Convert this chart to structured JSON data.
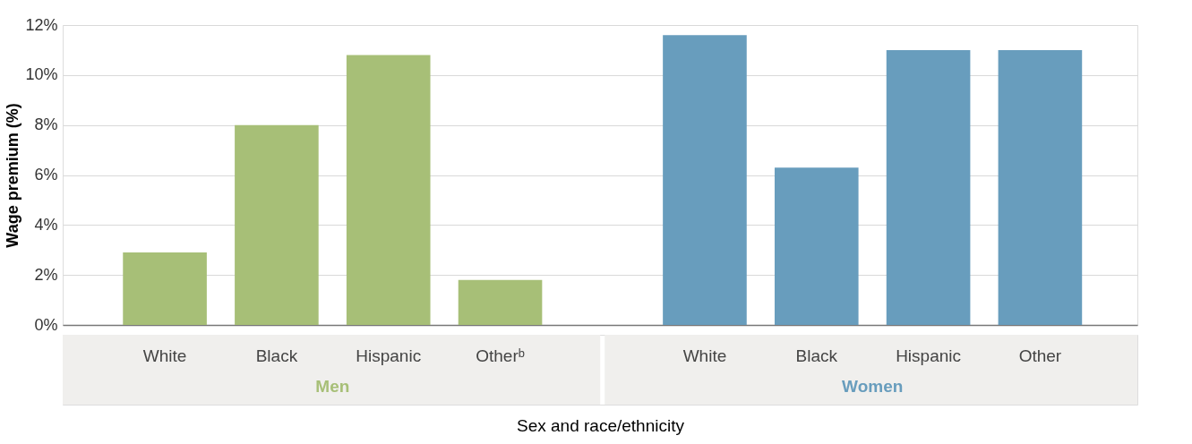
{
  "chart_data": {
    "type": "bar",
    "xlabel": "Sex and race/ethnicity",
    "ylabel": "Wage premium (%)",
    "categories": [
      "White",
      "Black",
      "Hispanic",
      "Otherᵇ",
      "White",
      "Black",
      "Hispanic",
      "Other"
    ],
    "series": [
      {
        "name": "Men",
        "color": "#a7bf77",
        "values": [
          2.9,
          8.0,
          10.8,
          1.8,
          null,
          null,
          null,
          null
        ]
      },
      {
        "name": "Women",
        "color": "#689dbd",
        "values": [
          null,
          null,
          null,
          null,
          11.6,
          6.3,
          11.0,
          11.0
        ]
      }
    ],
    "ylim": [
      0,
      12
    ],
    "yticks": [
      {
        "value": 0,
        "label": "0%"
      },
      {
        "value": 2,
        "label": "2%"
      },
      {
        "value": 4,
        "label": "4%"
      },
      {
        "value": 6,
        "label": "6%"
      },
      {
        "value": 8,
        "label": "8%"
      },
      {
        "value": 10,
        "label": "10%"
      },
      {
        "value": 12,
        "label": "12%"
      }
    ],
    "grid": "y",
    "legend": false
  }
}
